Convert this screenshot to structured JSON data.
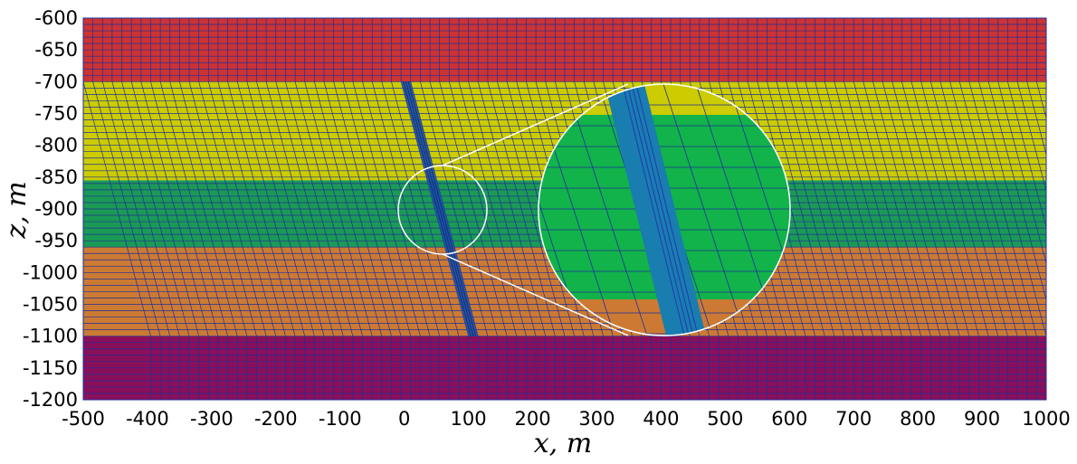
{
  "chart_data": {
    "type": "mesh-section",
    "xlabel": "x, m",
    "ylabel": "z, m",
    "xlim": [
      -500,
      1000
    ],
    "ylim": [
      -1200,
      -600
    ],
    "x_ticks": [
      "-500",
      "-400",
      "-300",
      "-200",
      "-100",
      "0",
      "100",
      "200",
      "300",
      "400",
      "500",
      "600",
      "700",
      "800",
      "900",
      "1000"
    ],
    "y_ticks": [
      "-600",
      "-650",
      "-700",
      "-750",
      "-800",
      "-850",
      "-900",
      "-950",
      "-1000",
      "-1050",
      "-1100",
      "-1150",
      "-1200"
    ],
    "layers": [
      {
        "z_top": -600,
        "z_bottom": -700,
        "color": "#cc3333"
      },
      {
        "z_top": -700,
        "z_bottom": -855,
        "color": "#cccc00"
      },
      {
        "z_top": -855,
        "z_bottom": -960,
        "color": "#1a9a55"
      },
      {
        "z_top": -960,
        "z_bottom": -1100,
        "color": "#cc7a33"
      },
      {
        "z_top": -1100,
        "z_bottom": -1200,
        "color": "#8a0f5a"
      }
    ],
    "fault_zone": {
      "x_top": [
        -5,
        10
      ],
      "x_bottom": [
        100,
        115
      ],
      "z_top": -700,
      "z_bottom": -1100,
      "color": "#1f4fa0"
    },
    "zoom_inset": {
      "center": [
        63,
        -910
      ],
      "radius_m": 70,
      "zoomed_layer_colors": [
        "#cccc00",
        "#11b34a",
        "#cc7a33"
      ],
      "fault_color": "#1a7db0"
    },
    "mesh_color": "#1f2f9a"
  }
}
